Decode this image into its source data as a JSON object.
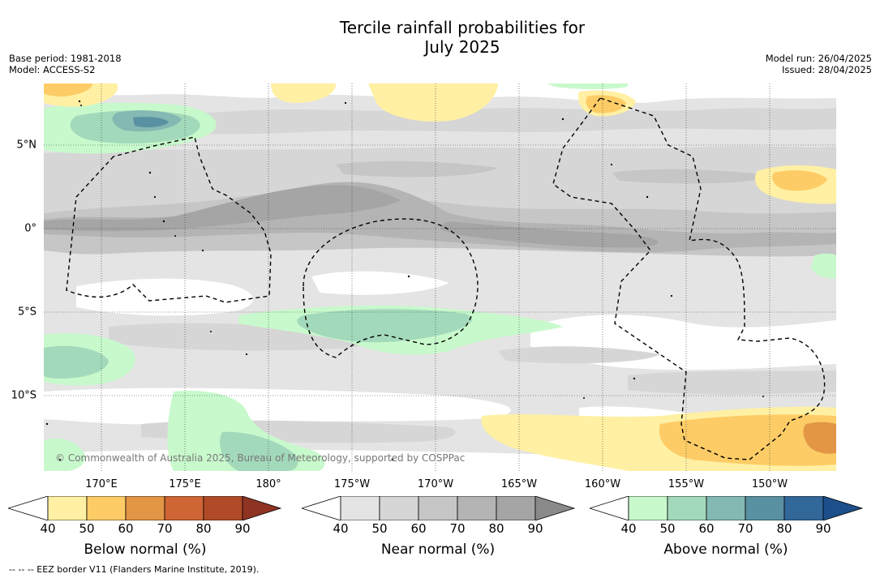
{
  "title_line1": "Tercile rainfall probabilities for",
  "title_line2": "July 2025",
  "meta_left": {
    "base_period": "Base period: 1981-2018",
    "model": "Model: ACCESS-S2"
  },
  "meta_right": {
    "model_run": "Model run: 26/04/2025",
    "issued": "Issued: 28/04/2025"
  },
  "latitude_labels": [
    "5°N",
    "0°",
    "5°S",
    "10°S"
  ],
  "longitude_labels": [
    "170°E",
    "175°E",
    "180°",
    "175°W",
    "170°W",
    "165°W",
    "160°W",
    "155°W",
    "150°W"
  ],
  "copyright": "© Commonwealth of Australia 2025, Bureau of Meteorology, supported by COSPPac",
  "colorbars": [
    {
      "title": "Below normal (%)",
      "ticks": [
        "40",
        "50",
        "60",
        "70",
        "80",
        "90"
      ],
      "colors": [
        "#fff0a3",
        "#fdcc66",
        "#e39645",
        "#cf6434",
        "#b14b27",
        "#8f3323"
      ]
    },
    {
      "title": "Near normal (%)",
      "ticks": [
        "40",
        "50",
        "60",
        "70",
        "80",
        "90"
      ],
      "colors": [
        "#e4e4e4",
        "#d6d6d6",
        "#c6c6c6",
        "#b4b4b4",
        "#a5a5a5",
        "#8a8a8a"
      ]
    },
    {
      "title": "Above normal (%)",
      "ticks": [
        "40",
        "50",
        "60",
        "70",
        "80",
        "90"
      ],
      "colors": [
        "#c8f9cc",
        "#a3d9bb",
        "#84b8b2",
        "#5990a2",
        "#32679a",
        "#1d4f8a"
      ]
    }
  ],
  "footer_legend": "--  --  -- EEZ border V11 (Flanders Marine Institute, 2019)."
}
